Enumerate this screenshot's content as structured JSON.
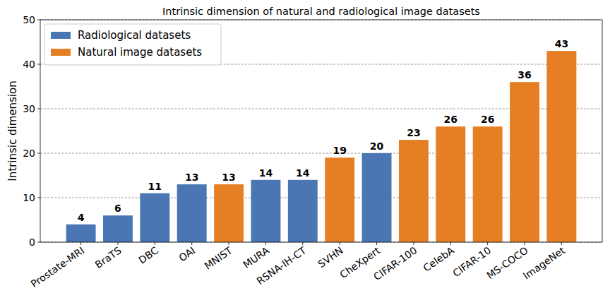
{
  "chart_data": {
    "type": "bar",
    "title": "Intrinsic dimension of natural and radiological image datasets",
    "y_label": "Intrinsic dimension",
    "categories": [
      "Prostate-MRI",
      "BraTS",
      "DBC",
      "OAI",
      "MNIST",
      "MURA",
      "RSNA-IH-CT",
      "SVHN",
      "CheXpert",
      "CIFAR-100",
      "CelebA",
      "CIFAR-10",
      "MS-COCO",
      "ImageNet"
    ],
    "series": [
      {
        "name": "Radiological datasets",
        "color": "#4a77b4",
        "values": [
          4,
          6,
          11,
          13,
          null,
          14,
          14,
          null,
          20,
          null,
          null,
          null,
          null,
          null
        ]
      },
      {
        "name": "Natural image datasets",
        "color": "#e67f24",
        "values": [
          null,
          null,
          null,
          null,
          13,
          null,
          null,
          19,
          null,
          23,
          26,
          26,
          36,
          43
        ]
      }
    ],
    "ylim": [
      0,
      50
    ],
    "yticks": [
      0,
      10,
      20,
      30,
      40,
      50
    ],
    "grid": true,
    "legend": "upper-left",
    "data_labels": true
  }
}
